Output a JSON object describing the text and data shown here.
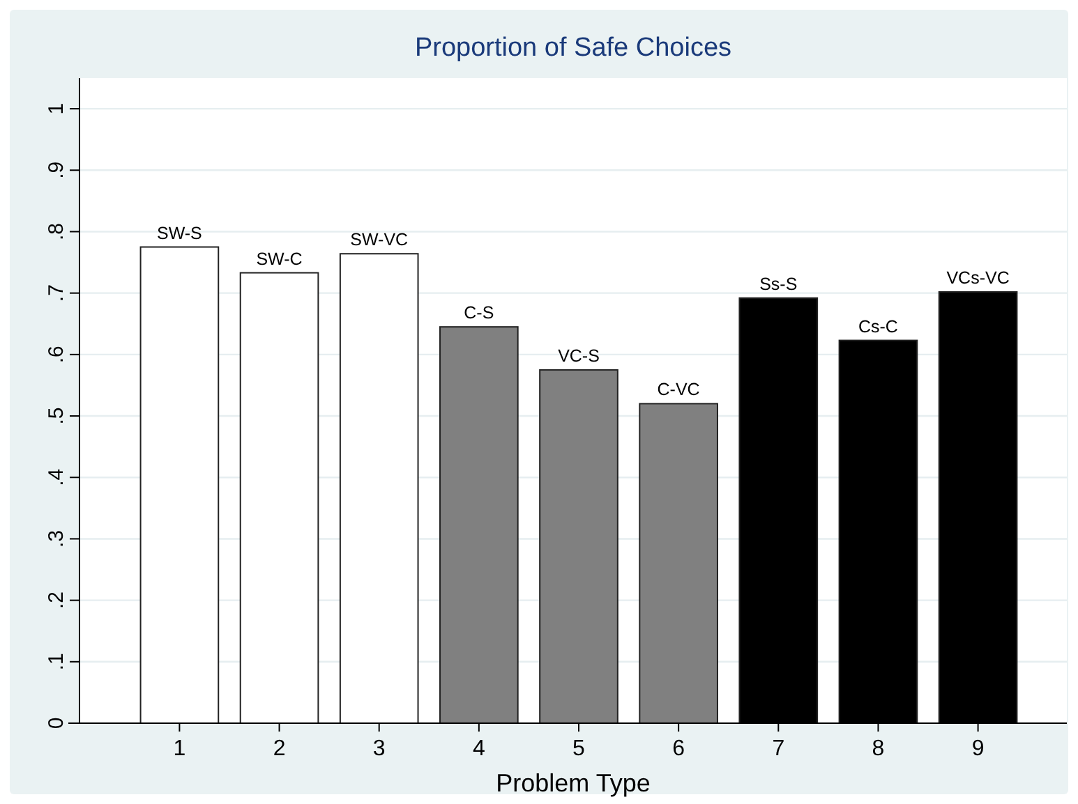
{
  "chart_data": {
    "type": "bar",
    "title": "Proportion of Safe Choices",
    "xlabel": "Problem Type",
    "categories": [
      "1",
      "2",
      "3",
      "4",
      "5",
      "6",
      "7",
      "8",
      "9"
    ],
    "values": [
      0.775,
      0.733,
      0.764,
      0.645,
      0.575,
      0.52,
      0.692,
      0.623,
      0.702
    ],
    "colors": [
      "#ffffff",
      "#ffffff",
      "#ffffff",
      "#808080",
      "#808080",
      "#808080",
      "#000000",
      "#000000",
      "#000000"
    ],
    "ylim": [
      0,
      1.05
    ],
    "yticks": [
      0,
      {
        "value": 0.1,
        "label": ".1"
      },
      {
        "value": 0.2,
        "label": ".2"
      },
      {
        "value": 0.3,
        "label": ".3"
      },
      {
        "value": 0.4,
        "label": ".4"
      },
      {
        "value": 0.5,
        "label": ".5"
      },
      {
        "value": 0.6,
        "label": ".6"
      },
      {
        "value": 0.7,
        "label": ".7"
      },
      {
        "value": 0.8,
        "label": ".8"
      },
      {
        "value": 0.9,
        "label": ".9"
      },
      1
    ],
    "grid": "y",
    "annotations": [
      {
        "text": "SW-S",
        "x": "1",
        "y": 0.775
      },
      {
        "text": "SW-C",
        "x": "2",
        "y": 0.733
      },
      {
        "text": "SW-VC",
        "x": "3",
        "y": 0.764
      },
      {
        "text": "C-S",
        "x": "4",
        "y": 0.645
      },
      {
        "text": "VC-S",
        "x": "5",
        "y": 0.575
      },
      {
        "text": "C-VC",
        "x": "6",
        "y": 0.52
      },
      {
        "text": "Ss-S",
        "x": "7",
        "y": 0.692
      },
      {
        "text": "Cs-C",
        "x": "8",
        "y": 0.623
      },
      {
        "text": "VCs-VC",
        "x": "9",
        "y": 0.702
      }
    ]
  }
}
